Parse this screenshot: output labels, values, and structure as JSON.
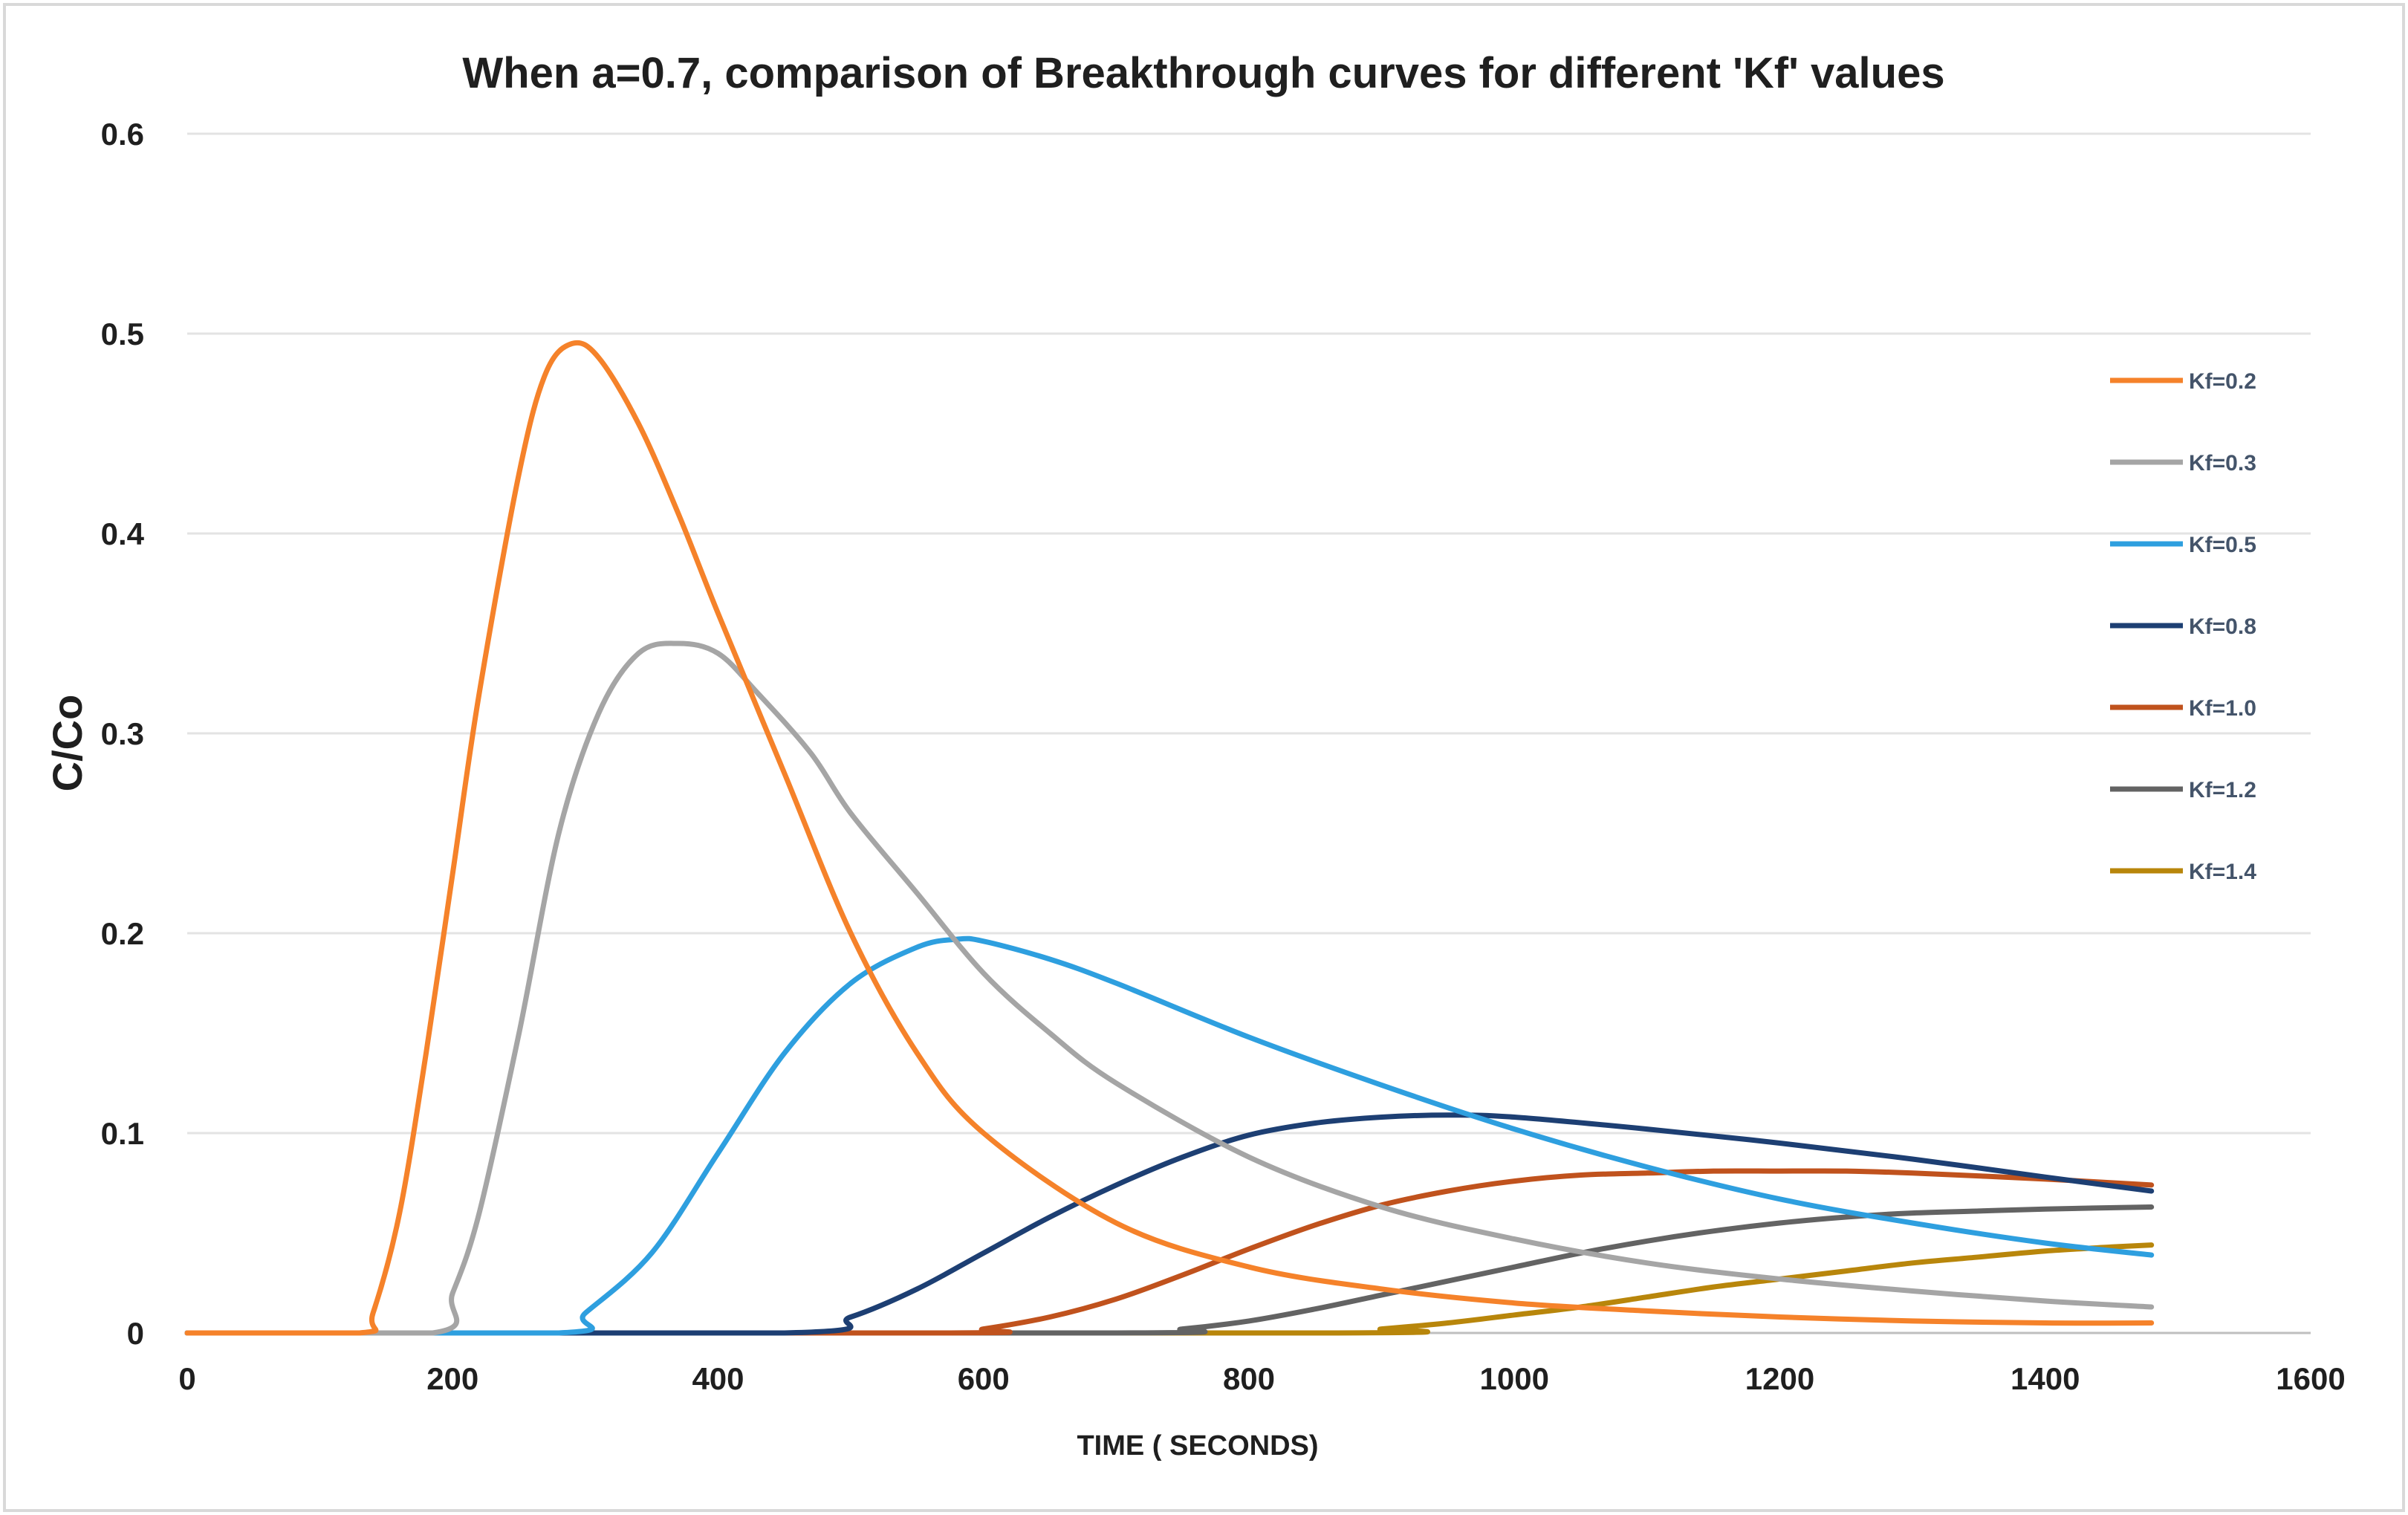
{
  "chart_data": {
    "type": "line",
    "title": "When a=0.7, comparison of Breakthrough curves for different 'Kf' values",
    "xlabel": "TIME ( SECONDS)",
    "ylabel": "C/Co",
    "xlim": [
      0,
      1600
    ],
    "ylim": [
      0,
      0.6
    ],
    "xticks": [
      "0",
      "200",
      "400",
      "600",
      "800",
      "1000",
      "1200",
      "1400",
      "1600"
    ],
    "yticks": [
      "0",
      "0.1",
      "0.2",
      "0.3",
      "0.4",
      "0.5",
      "0.6"
    ],
    "grid": "horizontal",
    "legend_position": "right",
    "series": [
      {
        "name": "Kf=0.2",
        "color": "#f5822a",
        "x": [
          0,
          130,
          140,
          160,
          180,
          200,
          220,
          250,
          270,
          290,
          310,
          340,
          370,
          400,
          450,
          500,
          550,
          600,
          700,
          800,
          900,
          1000,
          1100,
          1200,
          1300,
          1400,
          1480
        ],
        "y": [
          0,
          0,
          0.01,
          0.06,
          0.14,
          0.23,
          0.32,
          0.43,
          0.48,
          0.495,
          0.488,
          0.455,
          0.41,
          0.36,
          0.28,
          0.2,
          0.14,
          0.1,
          0.055,
          0.033,
          0.022,
          0.015,
          0.011,
          0.008,
          0.006,
          0.005,
          0.005
        ]
      },
      {
        "name": "Kf=0.3",
        "color": "#a5a5a5",
        "x": [
          0,
          185,
          200,
          220,
          250,
          280,
          310,
          340,
          370,
          400,
          430,
          470,
          500,
          550,
          600,
          650,
          700,
          800,
          900,
          1000,
          1100,
          1200,
          1300,
          1400,
          1480
        ],
        "y": [
          0,
          0,
          0.02,
          0.06,
          0.15,
          0.25,
          0.31,
          0.34,
          0.345,
          0.34,
          0.32,
          0.29,
          0.26,
          0.22,
          0.18,
          0.15,
          0.125,
          0.088,
          0.063,
          0.047,
          0.035,
          0.027,
          0.021,
          0.016,
          0.013
        ]
      },
      {
        "name": "Kf=0.5",
        "color": "#2e9fdf",
        "x": [
          0,
          280,
          300,
          350,
          400,
          450,
          500,
          550,
          580,
          600,
          650,
          700,
          800,
          900,
          1000,
          1100,
          1200,
          1300,
          1400,
          1480
        ],
        "y": [
          0,
          0,
          0.01,
          0.04,
          0.09,
          0.14,
          0.175,
          0.193,
          0.197,
          0.196,
          0.187,
          0.175,
          0.148,
          0.124,
          0.102,
          0.083,
          0.067,
          0.055,
          0.045,
          0.039
        ]
      },
      {
        "name": "Kf=0.8",
        "color": "#1d3f73",
        "x": [
          0,
          450,
          500,
          550,
          600,
          650,
          700,
          750,
          800,
          850,
          900,
          950,
          1000,
          1100,
          1200,
          1300,
          1400,
          1480
        ],
        "y": [
          0,
          0,
          0.008,
          0.022,
          0.04,
          0.058,
          0.074,
          0.088,
          0.099,
          0.105,
          0.108,
          0.109,
          0.108,
          0.102,
          0.095,
          0.087,
          0.078,
          0.071
        ]
      },
      {
        "name": "Kf=1.0",
        "color": "#c0521d",
        "x": [
          0,
          570,
          600,
          650,
          700,
          750,
          800,
          850,
          900,
          950,
          1000,
          1050,
          1100,
          1150,
          1200,
          1250,
          1300,
          1400,
          1480
        ],
        "y": [
          0,
          0,
          0.002,
          0.008,
          0.017,
          0.029,
          0.042,
          0.054,
          0.064,
          0.071,
          0.076,
          0.079,
          0.08,
          0.081,
          0.081,
          0.081,
          0.08,
          0.077,
          0.074
        ]
      },
      {
        "name": "Kf=1.2",
        "color": "#636363",
        "x": [
          0,
          700,
          750,
          800,
          850,
          900,
          950,
          1000,
          1050,
          1100,
          1150,
          1200,
          1250,
          1300,
          1350,
          1400,
          1480
        ],
        "y": [
          0,
          0,
          0.002,
          0.006,
          0.012,
          0.019,
          0.026,
          0.033,
          0.04,
          0.046,
          0.051,
          0.055,
          0.058,
          0.06,
          0.061,
          0.062,
          0.063
        ]
      },
      {
        "name": "Kf=1.4",
        "color": "#b8860b",
        "x": [
          0,
          860,
          900,
          950,
          1000,
          1050,
          1100,
          1150,
          1200,
          1250,
          1300,
          1350,
          1400,
          1450,
          1480
        ],
        "y": [
          0,
          0,
          0.002,
          0.005,
          0.009,
          0.013,
          0.018,
          0.023,
          0.027,
          0.031,
          0.035,
          0.038,
          0.041,
          0.043,
          0.044
        ]
      }
    ]
  }
}
